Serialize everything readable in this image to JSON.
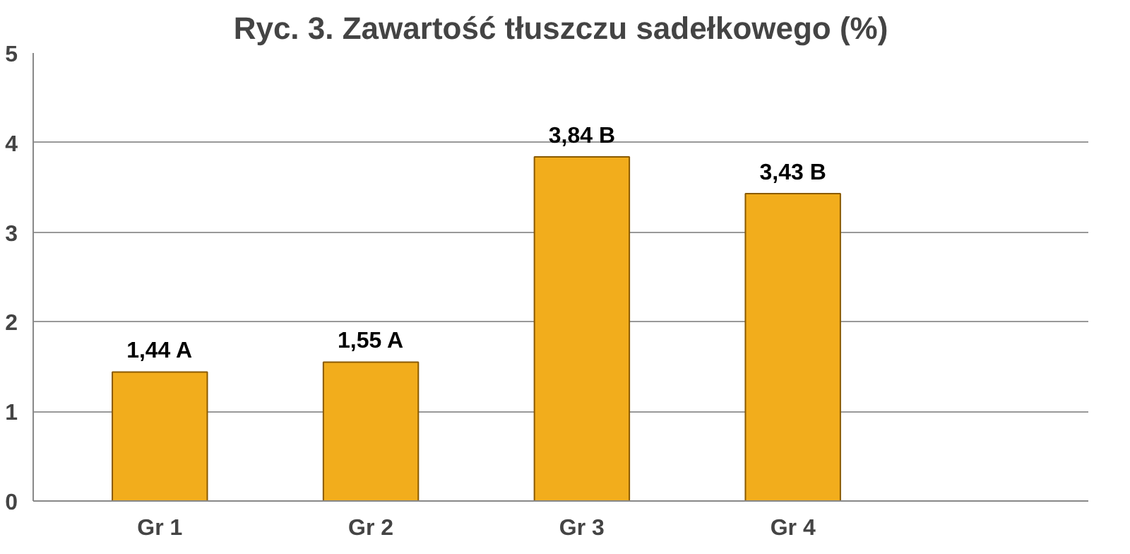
{
  "chart_data": {
    "type": "bar",
    "title": "Ryc. 3. Zawartość tłuszczu sadełkowego (%)",
    "categories": [
      "Gr 1",
      "Gr 2",
      "Gr 3",
      "Gr 4"
    ],
    "values": [
      1.44,
      1.55,
      3.84,
      3.43
    ],
    "value_labels": [
      "1,44 A",
      "1,55 A",
      "3,84 B",
      "3,43 B"
    ],
    "color": "#f2ad1c",
    "ylim": [
      0,
      5
    ],
    "yticks": [
      0,
      1,
      2,
      3,
      4,
      5
    ],
    "grid": "y"
  }
}
